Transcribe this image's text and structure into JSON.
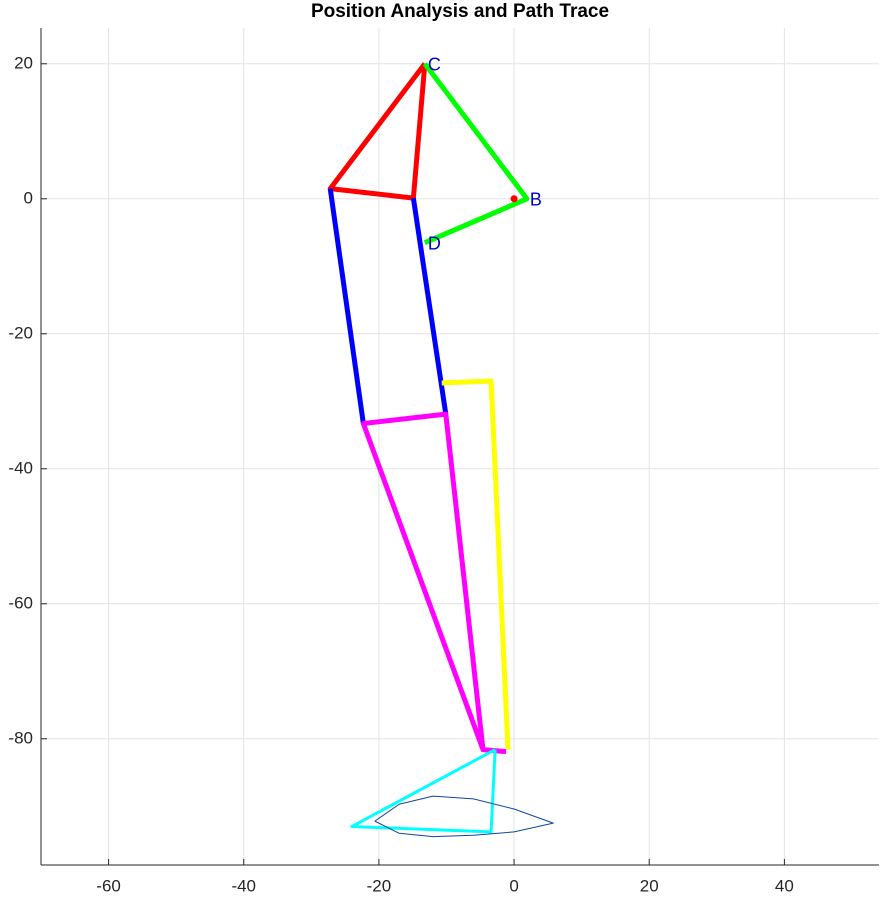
{
  "chart_data": {
    "type": "line",
    "title": "Position Analysis and Path Trace",
    "xlim": [
      -70,
      54
    ],
    "ylim": [
      -98.7,
      25.3
    ],
    "xticks": [
      -60,
      -40,
      -20,
      0,
      20,
      40
    ],
    "yticks": [
      -80,
      -60,
      -40,
      -20,
      0,
      20
    ],
    "grid": true,
    "series": [
      {
        "color": "#ff0000",
        "linewidth": 5,
        "x": [
          -13.2,
          -27.2,
          -14.9,
          -13.2
        ],
        "y": [
          20,
          1.5,
          0.1,
          20
        ]
      },
      {
        "color": "#00ff00",
        "linewidth": 5,
        "x": [
          -13.2,
          1.9,
          -13.2
        ],
        "y": [
          20,
          0,
          -6.5
        ]
      },
      {
        "color": "#0000ff",
        "linewidth": 5,
        "x": [
          -27.2,
          -22.3,
          null,
          -14.9,
          -10.1
        ],
        "y": [
          1.5,
          -33.3,
          null,
          0.1,
          -31.9
        ]
      },
      {
        "color": "#ffff00",
        "linewidth": 5,
        "x": [
          -10.7,
          -3.4,
          -0.9
        ],
        "y": [
          -27.3,
          -27.0,
          -81.6
        ]
      },
      {
        "color": "#ff00ff",
        "linewidth": 5,
        "x": [
          -4.6,
          -22.3,
          -10.1,
          -4.6,
          -1.2
        ],
        "y": [
          -81.6,
          -33.3,
          -31.9,
          -81.6,
          -81.9
        ]
      },
      {
        "color": "#00ffff",
        "linewidth": 3,
        "x": [
          -2.8,
          -24,
          -3.4,
          -2.8
        ],
        "y": [
          -81.6,
          -93,
          -93.8,
          -81.6
        ]
      },
      {
        "color": "#0d47a1",
        "linewidth": 1,
        "x": [
          -20.6,
          -17,
          -12,
          -6,
          0,
          5.8,
          0,
          -6,
          -12,
          -17,
          -20.6
        ],
        "y": [
          -92.2,
          -89.7,
          -88.5,
          -88.9,
          -90.4,
          -92.5,
          -93.8,
          -94.3,
          -94.5,
          -94,
          -92.2
        ]
      }
    ],
    "markers": [
      {
        "x": 0,
        "y": 0,
        "color": "#ff0000"
      }
    ],
    "joints": [
      {
        "label": "C",
        "x": -13.2,
        "y": 20
      },
      {
        "label": "B",
        "x": 1.9,
        "y": 0
      },
      {
        "label": "D",
        "x": -13.2,
        "y": -6.5
      }
    ]
  }
}
